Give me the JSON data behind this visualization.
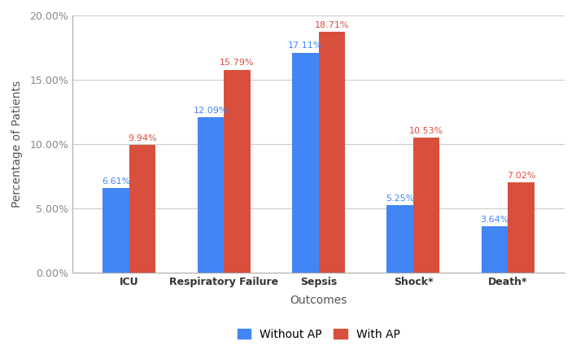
{
  "categories": [
    "ICU",
    "Respiratory Failure",
    "Sepsis",
    "Shock*",
    "Death*"
  ],
  "without_ap": [
    6.61,
    12.09,
    17.11,
    5.25,
    3.64
  ],
  "with_ap": [
    9.94,
    15.79,
    18.71,
    10.53,
    7.02
  ],
  "without_ap_labels": [
    "6.61%",
    "12.09%",
    "17.11%",
    "5.25%",
    "3.64%"
  ],
  "with_ap_labels": [
    "9.94%",
    "15.79%",
    "18.71%",
    "10.53%",
    "7.02%"
  ],
  "bar_color_blue": "#4285F4",
  "bar_color_red": "#D94F3D",
  "xlabel": "Outcomes",
  "ylabel": "Percentage of Patients",
  "ylim": [
    0,
    20
  ],
  "yticks": [
    0,
    5,
    10,
    15,
    20
  ],
  "ytick_labels": [
    "0.00%",
    "5.00%",
    "10.00%",
    "15.00%",
    "20.00%"
  ],
  "legend_without": "Without AP",
  "legend_with": "With AP",
  "background_color": "#ffffff",
  "grid_color": "#cccccc",
  "bar_width": 0.28,
  "label_fontsize": 8.0,
  "axis_label_fontsize": 10,
  "tick_fontsize": 9,
  "legend_fontsize": 10,
  "xlabel_color": "#555555",
  "ylabel_color": "#555555",
  "xtick_color": "#333333",
  "ytick_color": "#888888",
  "spine_color": "#aaaaaa"
}
